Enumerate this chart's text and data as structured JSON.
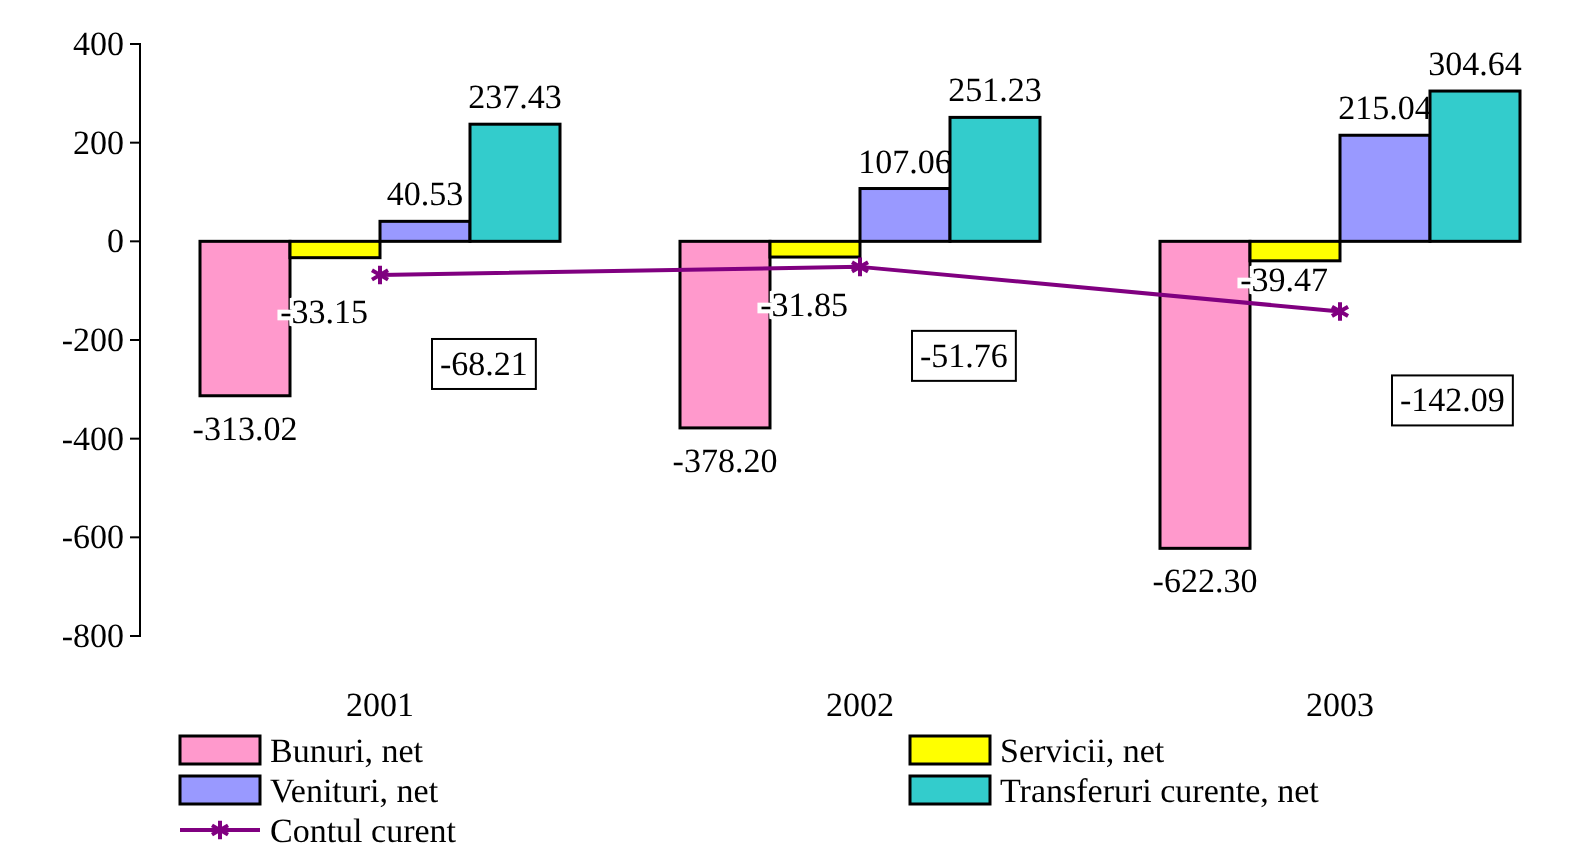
{
  "chart_data": {
    "type": "bar",
    "categories": [
      "2001",
      "2002",
      "2003"
    ],
    "series": [
      {
        "name": "Bunuri, net",
        "color": "#ff99cc",
        "values": [
          -313.02,
          -378.2,
          -622.3
        ],
        "value_labels": [
          "-313.02",
          "-378.20",
          "-622.30"
        ]
      },
      {
        "name": "Servicii, net",
        "color": "#ffff00",
        "values": [
          -33.15,
          -31.85,
          -39.47
        ],
        "value_labels": [
          "-33.15",
          "-31.85",
          "-39.47"
        ]
      },
      {
        "name": "Venituri, net",
        "color": "#9999ff",
        "values": [
          40.53,
          107.06,
          215.04
        ],
        "value_labels": [
          "40.53",
          "107.06",
          "215.04"
        ]
      },
      {
        "name": "Transferuri curente, net",
        "color": "#33cccc",
        "values": [
          237.43,
          251.23,
          304.64
        ],
        "value_labels": [
          "237.43",
          "251.23",
          "304.64"
        ]
      },
      {
        "name": "Contul curent",
        "type": "line",
        "color": "#800080",
        "marker": "cross",
        "values": [
          -68.21,
          -51.76,
          -142.09
        ],
        "value_labels": [
          "-68.21",
          "-51.76",
          "-142.09"
        ]
      }
    ],
    "ylim": [
      -800,
      400
    ],
    "yticks": [
      -800,
      -600,
      -400,
      -200,
      0,
      200,
      400
    ],
    "grid": false,
    "legend": "bottom"
  }
}
